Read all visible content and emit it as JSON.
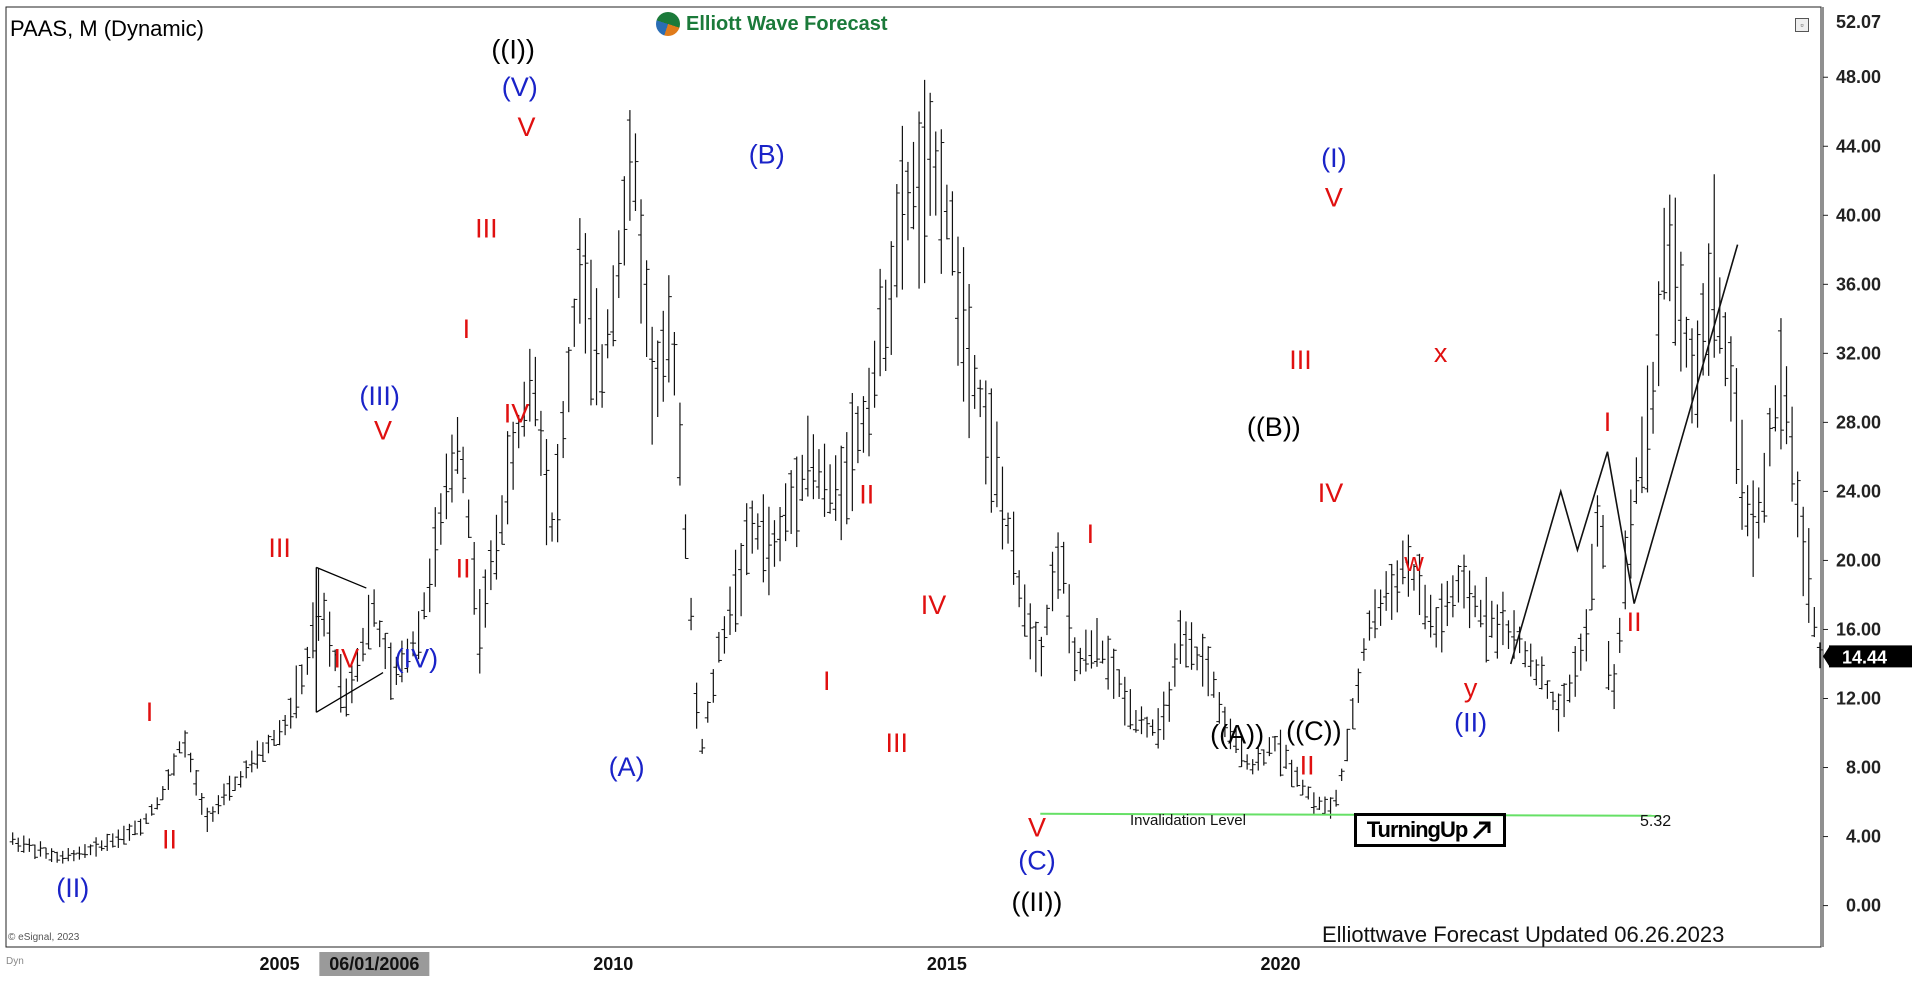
{
  "header": {
    "symbol": "PAAS, M (Dynamic)",
    "brand": "Elliott Wave Forecast"
  },
  "footer": {
    "updated": "Elliottwave Forecast Updated 06.26.2023",
    "copyright": "© eSignal, 2023",
    "dyn": "Dyn"
  },
  "turning_up": {
    "label": "TurningUp",
    "icon": "arrow-up-right-icon"
  },
  "invalidation": {
    "label": "Invalidation Level",
    "value": "5.32"
  },
  "colors": {
    "blue": "#1a23c8",
    "red": "#e01010",
    "black": "#000000",
    "green": "#66e066",
    "price_bar": "#111111"
  },
  "chart_data": {
    "type": "ohlc",
    "title": "PAAS, M (Dynamic)",
    "xlabel": "",
    "ylabel": "",
    "x_ticks": [
      "2005",
      "06/01/2006",
      "2010",
      "2015",
      "2020"
    ],
    "x_tick_values": [
      2005.0,
      2006.42,
      2010.0,
      2015.0,
      2020.0
    ],
    "highlighted_tick": "06/01/2006",
    "y_ticks": [
      "0.00",
      "4.00",
      "8.00",
      "12.00",
      "16.00",
      "20.00",
      "24.00",
      "28.00",
      "32.00",
      "36.00",
      "40.00",
      "44.00",
      "48.00"
    ],
    "y_tick_values": [
      0,
      4,
      8,
      12,
      16,
      20,
      24,
      28,
      32,
      36,
      40,
      44,
      48
    ],
    "ylim": [
      -2.4,
      52.07
    ],
    "xlim": [
      2000.9,
      2028.1
    ],
    "top_value": "52.07",
    "last_price": "14.44",
    "invalidation_level": 5.32,
    "price_path": [
      [
        2001.0,
        3.8
      ],
      [
        2001.7,
        2.7
      ],
      [
        2002.2,
        3.3
      ],
      [
        2002.9,
        4.5
      ],
      [
        2003.3,
        6.8
      ],
      [
        2003.55,
        9.8
      ],
      [
        2003.9,
        5.0
      ],
      [
        2004.5,
        7.8
      ],
      [
        2005.1,
        10.5
      ],
      [
        2005.4,
        13.8
      ],
      [
        2005.6,
        17.5
      ],
      [
        2006.0,
        12.0
      ],
      [
        2006.4,
        17.2
      ],
      [
        2006.7,
        13.0
      ],
      [
        2007.1,
        16.0
      ],
      [
        2007.7,
        27.5
      ],
      [
        2008.0,
        16.0
      ],
      [
        2008.5,
        26.0
      ],
      [
        2008.8,
        31.0
      ],
      [
        2009.1,
        21.5
      ],
      [
        2009.5,
        37.0
      ],
      [
        2009.8,
        30.0
      ],
      [
        2010.3,
        43.5
      ],
      [
        2010.6,
        30.0
      ],
      [
        2010.9,
        33.0
      ],
      [
        2011.3,
        8.5
      ],
      [
        2011.6,
        15.0
      ],
      [
        2012.1,
        22.0
      ],
      [
        2012.4,
        20.5
      ],
      [
        2012.9,
        26.0
      ],
      [
        2013.3,
        23.5
      ],
      [
        2013.8,
        28.5
      ],
      [
        2014.4,
        41.0
      ],
      [
        2014.9,
        42.5
      ],
      [
        2015.3,
        33.0
      ],
      [
        2015.7,
        26.0
      ],
      [
        2016.1,
        18.0
      ],
      [
        2016.4,
        14.5
      ],
      [
        2016.7,
        21.0
      ],
      [
        2016.9,
        14.0
      ],
      [
        2017.3,
        15.0
      ],
      [
        2017.8,
        11.0
      ],
      [
        2018.2,
        10.0
      ],
      [
        2018.5,
        15.0
      ],
      [
        2018.9,
        14.0
      ],
      [
        2019.2,
        10.0
      ],
      [
        2019.6,
        8.0
      ],
      [
        2019.9,
        9.5
      ],
      [
        2020.5,
        6.0
      ],
      [
        2020.8,
        5.6
      ],
      [
        2021.0,
        9.0
      ],
      [
        2021.3,
        16.0
      ],
      [
        2021.6,
        18.0
      ],
      [
        2021.9,
        20.0
      ],
      [
        2022.3,
        16.0
      ],
      [
        2022.7,
        18.5
      ],
      [
        2023.0,
        17.0
      ],
      [
        2023.4,
        16.0
      ],
      [
        2023.8,
        14.0
      ],
      [
        2024.2,
        11.0
      ],
      [
        2024.6,
        16.0
      ],
      [
        2024.8,
        24.0
      ],
      [
        2024.95,
        11.0
      ],
      [
        2025.3,
        24.0
      ],
      [
        2025.6,
        30.0
      ],
      [
        2025.8,
        39.5
      ],
      [
        2026.2,
        30.0
      ],
      [
        2026.5,
        37.0
      ],
      [
        2026.8,
        28.0
      ],
      [
        2027.1,
        21.0
      ],
      [
        2027.3,
        26.0
      ],
      [
        2027.5,
        30.5
      ],
      [
        2027.8,
        22.0
      ],
      [
        2028.1,
        14.0
      ]
    ],
    "projection": [
      [
        2023.45,
        14.0
      ],
      [
        2024.2,
        24.0
      ],
      [
        2024.45,
        20.6
      ],
      [
        2024.9,
        26.3
      ],
      [
        2025.3,
        17.5
      ],
      [
        2026.85,
        38.3
      ]
    ],
    "triangle": [
      [
        [
          2005.55,
          19.6
        ],
        [
          2006.3,
          18.4
        ]
      ],
      [
        [
          2005.55,
          11.2
        ],
        [
          2006.55,
          13.5
        ]
      ]
    ],
    "labels": [
      {
        "text": "(II)",
        "x": 2001.9,
        "y": 0.5,
        "color": "blue"
      },
      {
        "text": "I",
        "x": 2003.05,
        "y": 10.7,
        "color": "red"
      },
      {
        "text": "II",
        "x": 2003.35,
        "y": 3.3,
        "color": "red"
      },
      {
        "text": "III",
        "x": 2005.0,
        "y": 20.2,
        "color": "red"
      },
      {
        "text": "IV",
        "x": 2006.0,
        "y": 13.8,
        "color": "red"
      },
      {
        "text": "(III)",
        "x": 2006.5,
        "y": 29.0,
        "color": "blue"
      },
      {
        "text": "V",
        "x": 2006.55,
        "y": 27.0,
        "color": "red"
      },
      {
        "text": "(IV)",
        "x": 2007.05,
        "y": 13.8,
        "color": "blue"
      },
      {
        "text": "I",
        "x": 2007.8,
        "y": 32.9,
        "color": "red"
      },
      {
        "text": "II",
        "x": 2007.75,
        "y": 19.0,
        "color": "red"
      },
      {
        "text": "III",
        "x": 2008.1,
        "y": 38.7,
        "color": "red"
      },
      {
        "text": "IV",
        "x": 2008.55,
        "y": 28.0,
        "color": "red"
      },
      {
        "text": "((I))",
        "x": 2008.5,
        "y": 49.1,
        "color": "black"
      },
      {
        "text": "(V)",
        "x": 2008.6,
        "y": 46.9,
        "color": "blue"
      },
      {
        "text": "V",
        "x": 2008.7,
        "y": 44.6,
        "color": "red"
      },
      {
        "text": "(A)",
        "x": 2010.2,
        "y": 7.5,
        "color": "blue"
      },
      {
        "text": "(B)",
        "x": 2012.3,
        "y": 43.0,
        "color": "blue"
      },
      {
        "text": "II",
        "x": 2013.8,
        "y": 23.3,
        "color": "red"
      },
      {
        "text": "I",
        "x": 2013.2,
        "y": 12.5,
        "color": "red"
      },
      {
        "text": "III",
        "x": 2014.25,
        "y": 8.9,
        "color": "red"
      },
      {
        "text": "IV",
        "x": 2014.8,
        "y": 16.9,
        "color": "red"
      },
      {
        "text": "V",
        "x": 2016.35,
        "y": 4.0,
        "color": "red"
      },
      {
        "text": "(C)",
        "x": 2016.35,
        "y": 2.1,
        "color": "blue"
      },
      {
        "text": "((II))",
        "x": 2016.35,
        "y": -0.3,
        "color": "black"
      },
      {
        "text": "I",
        "x": 2017.15,
        "y": 21.0,
        "color": "red"
      },
      {
        "text": "((A))",
        "x": 2019.35,
        "y": 9.4,
        "color": "black"
      },
      {
        "text": "((B))",
        "x": 2019.9,
        "y": 27.2,
        "color": "black"
      },
      {
        "text": "((C))",
        "x": 2020.5,
        "y": 9.6,
        "color": "black"
      },
      {
        "text": "II",
        "x": 2020.4,
        "y": 7.6,
        "color": "red"
      },
      {
        "text": "III",
        "x": 2020.3,
        "y": 31.1,
        "color": "red"
      },
      {
        "text": "IV",
        "x": 2020.75,
        "y": 23.4,
        "color": "red"
      },
      {
        "text": "(I)",
        "x": 2020.8,
        "y": 42.8,
        "color": "blue"
      },
      {
        "text": "V",
        "x": 2020.8,
        "y": 40.5,
        "color": "red"
      },
      {
        "text": "x",
        "x": 2022.4,
        "y": 31.5,
        "color": "red"
      },
      {
        "text": "w",
        "x": 2022.0,
        "y": 19.4,
        "color": "red"
      },
      {
        "text": "y",
        "x": 2022.85,
        "y": 12.1,
        "color": "red"
      },
      {
        "text": "(II)",
        "x": 2022.85,
        "y": 10.1,
        "color": "blue"
      },
      {
        "text": "I",
        "x": 2024.9,
        "y": 27.5,
        "color": "red"
      },
      {
        "text": "II",
        "x": 2025.3,
        "y": 15.9,
        "color": "red"
      }
    ]
  }
}
